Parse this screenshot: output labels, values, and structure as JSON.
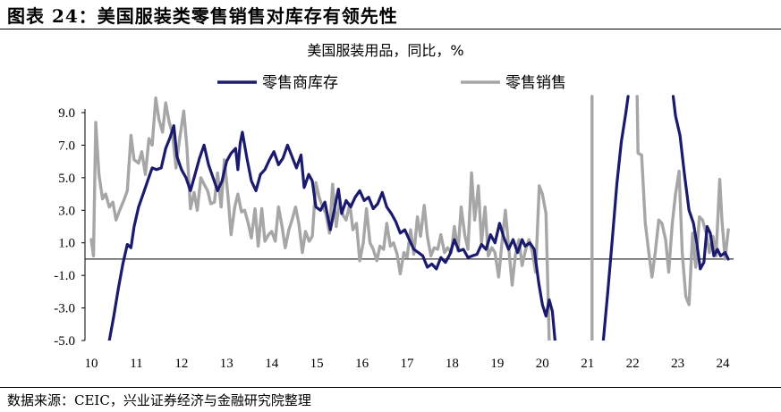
{
  "figure": {
    "title": "图表 24：美国服装类零售销售对库存有领先性",
    "source": "数据来源：CEIC，兴业证券经济与金融研究院整理"
  },
  "chart_data": {
    "type": "line",
    "title": "美国服装用品，同比，%",
    "xlabel": "",
    "ylabel": "",
    "ylim": [
      -5.0,
      9.0
    ],
    "xlim": [
      2010.0,
      2024.3
    ],
    "yticks": [
      -5.0,
      -3.0,
      -1.0,
      1.0,
      3.0,
      5.0,
      7.0,
      9.0
    ],
    "ytick_labels": [
      "-5.0",
      "-3.0",
      "-1.0",
      "1.0",
      "3.0",
      "5.0",
      "7.0",
      "9.0"
    ],
    "xticks": [
      2010,
      2011,
      2012,
      2013,
      2014,
      2015,
      2016,
      2017,
      2018,
      2019,
      2020,
      2021,
      2022,
      2023,
      2024
    ],
    "xtick_labels": [
      "10",
      "11",
      "12",
      "13",
      "14",
      "15",
      "16",
      "17",
      "18",
      "19",
      "20",
      "21",
      "22",
      "23",
      "24"
    ],
    "grid": false,
    "legend_position": "top",
    "series": [
      {
        "name": "零售商库存",
        "color": "#1a1a6e",
        "points": [
          [
            2010.4,
            -5.0
          ],
          [
            2010.5,
            -3.5
          ],
          [
            2010.6,
            -1.8
          ],
          [
            2010.7,
            -0.3
          ],
          [
            2010.8,
            0.9
          ],
          [
            2010.88,
            0.7
          ],
          [
            2010.95,
            2.0
          ],
          [
            2011.05,
            3.2
          ],
          [
            2011.15,
            4.0
          ],
          [
            2011.25,
            4.8
          ],
          [
            2011.35,
            5.6
          ],
          [
            2011.45,
            5.5
          ],
          [
            2011.55,
            5.6
          ],
          [
            2011.65,
            6.8
          ],
          [
            2011.75,
            7.5
          ],
          [
            2011.83,
            8.2
          ],
          [
            2011.9,
            6.3
          ],
          [
            2012.0,
            5.5
          ],
          [
            2012.1,
            5.0
          ],
          [
            2012.2,
            4.2
          ],
          [
            2012.3,
            5.2
          ],
          [
            2012.4,
            6.2
          ],
          [
            2012.5,
            7.0
          ],
          [
            2012.6,
            5.8
          ],
          [
            2012.7,
            5.0
          ],
          [
            2012.8,
            4.2
          ],
          [
            2012.9,
            4.8
          ],
          [
            2013.0,
            6.0
          ],
          [
            2013.1,
            6.5
          ],
          [
            2013.2,
            6.8
          ],
          [
            2013.25,
            5.5
          ],
          [
            2013.3,
            7.1
          ],
          [
            2013.35,
            7.8
          ],
          [
            2013.45,
            6.2
          ],
          [
            2013.55,
            4.8
          ],
          [
            2013.65,
            4.2
          ],
          [
            2013.75,
            5.2
          ],
          [
            2013.85,
            5.5
          ],
          [
            2013.95,
            6.1
          ],
          [
            2014.05,
            6.6
          ],
          [
            2014.15,
            5.8
          ],
          [
            2014.25,
            6.2
          ],
          [
            2014.35,
            7.0
          ],
          [
            2014.45,
            6.3
          ],
          [
            2014.55,
            5.6
          ],
          [
            2014.65,
            6.4
          ],
          [
            2014.72,
            4.4
          ],
          [
            2014.82,
            5.2
          ],
          [
            2014.9,
            4.8
          ],
          [
            2014.98,
            3.2
          ],
          [
            2015.08,
            3.0
          ],
          [
            2015.18,
            3.5
          ],
          [
            2015.25,
            2.5
          ],
          [
            2015.3,
            1.8
          ],
          [
            2015.4,
            3.2
          ],
          [
            2015.48,
            4.3
          ],
          [
            2015.55,
            2.8
          ],
          [
            2015.65,
            3.6
          ],
          [
            2015.75,
            3.2
          ],
          [
            2015.85,
            3.8
          ],
          [
            2015.95,
            4.2
          ],
          [
            2016.05,
            3.6
          ],
          [
            2016.15,
            3.8
          ],
          [
            2016.25,
            3.1
          ],
          [
            2016.35,
            3.4
          ],
          [
            2016.45,
            4.1
          ],
          [
            2016.55,
            3.2
          ],
          [
            2016.65,
            2.8
          ],
          [
            2016.75,
            2.3
          ],
          [
            2016.85,
            1.6
          ],
          [
            2016.95,
            1.8
          ],
          [
            2017.05,
            1.2
          ],
          [
            2017.15,
            0.6
          ],
          [
            2017.25,
            0.4
          ],
          [
            2017.35,
            0.2
          ],
          [
            2017.45,
            -0.5
          ],
          [
            2017.55,
            -0.3
          ],
          [
            2017.65,
            -0.6
          ],
          [
            2017.75,
            0.1
          ],
          [
            2017.85,
            -0.2
          ],
          [
            2017.95,
            0.3
          ],
          [
            2018.05,
            1.2
          ],
          [
            2018.15,
            0.5
          ],
          [
            2018.25,
            0.6
          ],
          [
            2018.35,
            0.1
          ],
          [
            2018.45,
            0.2
          ],
          [
            2018.55,
            0.3
          ],
          [
            2018.65,
            0.9
          ],
          [
            2018.75,
            0.6
          ],
          [
            2018.85,
            1.5
          ],
          [
            2018.95,
            1.0
          ],
          [
            2019.05,
            2.2
          ],
          [
            2019.15,
            1.3
          ],
          [
            2019.25,
            0.6
          ],
          [
            2019.35,
            1.2
          ],
          [
            2019.45,
            0.4
          ],
          [
            2019.55,
            1.2
          ],
          [
            2019.62,
            0.8
          ],
          [
            2019.72,
            1.0
          ],
          [
            2019.82,
            0.6
          ],
          [
            2019.92,
            -1.5
          ],
          [
            2020.0,
            -2.8
          ],
          [
            2020.08,
            -3.5
          ],
          [
            2020.15,
            -2.5
          ],
          [
            2020.22,
            -3.2
          ],
          [
            2020.28,
            -5.0
          ],
          null,
          [
            2021.35,
            -5.0
          ],
          [
            2021.45,
            -2.0
          ],
          [
            2021.55,
            1.2
          ],
          [
            2021.65,
            4.6
          ],
          [
            2021.75,
            7.2
          ],
          [
            2021.85,
            9.0
          ],
          [
            2021.9,
            10.0
          ],
          null,
          [
            2022.9,
            10.0
          ],
          [
            2022.95,
            8.8
          ],
          [
            2023.05,
            7.6
          ],
          [
            2023.15,
            5.2
          ],
          [
            2023.25,
            3.0
          ],
          [
            2023.35,
            2.2
          ],
          [
            2023.42,
            1.0
          ],
          [
            2023.5,
            -0.6
          ],
          [
            2023.58,
            -0.2
          ],
          [
            2023.65,
            2.0
          ],
          [
            2023.72,
            1.6
          ],
          [
            2023.8,
            0.2
          ],
          [
            2023.88,
            0.6
          ],
          [
            2023.95,
            0.2
          ],
          [
            2024.05,
            0.4
          ],
          [
            2024.12,
            0.0
          ]
        ]
      },
      {
        "name": "零售销售",
        "color": "#a6a6a6",
        "points": [
          [
            2010.0,
            1.2
          ],
          [
            2010.05,
            0.2
          ],
          [
            2010.1,
            8.4
          ],
          [
            2010.17,
            5.2
          ],
          [
            2010.25,
            3.7
          ],
          [
            2010.32,
            4.0
          ],
          [
            2010.4,
            3.2
          ],
          [
            2010.48,
            3.5
          ],
          [
            2010.55,
            2.4
          ],
          [
            2010.63,
            3.0
          ],
          [
            2010.72,
            3.6
          ],
          [
            2010.8,
            4.2
          ],
          [
            2010.88,
            7.6
          ],
          [
            2010.95,
            6.1
          ],
          [
            2011.05,
            5.9
          ],
          [
            2011.12,
            6.6
          ],
          [
            2011.2,
            5.2
          ],
          [
            2011.28,
            7.4
          ],
          [
            2011.35,
            7.0
          ],
          [
            2011.43,
            9.9
          ],
          [
            2011.5,
            8.6
          ],
          [
            2011.58,
            7.8
          ],
          [
            2011.65,
            9.6
          ],
          [
            2011.73,
            8.4
          ],
          [
            2011.8,
            7.7
          ],
          [
            2011.88,
            5.6
          ],
          [
            2011.95,
            7.2
          ],
          [
            2012.05,
            9.1
          ],
          [
            2012.12,
            6.9
          ],
          [
            2012.2,
            3.1
          ],
          [
            2012.28,
            4.1
          ],
          [
            2012.35,
            3.0
          ],
          [
            2012.43,
            5.0
          ],
          [
            2012.5,
            4.6
          ],
          [
            2012.58,
            4.2
          ],
          [
            2012.65,
            3.4
          ],
          [
            2012.73,
            3.5
          ],
          [
            2012.8,
            5.3
          ],
          [
            2012.88,
            3.2
          ],
          [
            2012.95,
            6.1
          ],
          [
            2013.03,
            3.9
          ],
          [
            2013.1,
            1.5
          ],
          [
            2013.18,
            3.2
          ],
          [
            2013.25,
            4.0
          ],
          [
            2013.33,
            2.9
          ],
          [
            2013.4,
            3.0
          ],
          [
            2013.48,
            2.2
          ],
          [
            2013.55,
            1.3
          ],
          [
            2013.63,
            3.1
          ],
          [
            2013.7,
            0.8
          ],
          [
            2013.78,
            3.1
          ],
          [
            2013.85,
            1.1
          ],
          [
            2013.93,
            1.5
          ],
          [
            2014.0,
            1.7
          ],
          [
            2014.08,
            1.1
          ],
          [
            2014.15,
            3.2
          ],
          [
            2014.23,
            2.0
          ],
          [
            2014.3,
            0.7
          ],
          [
            2014.38,
            1.8
          ],
          [
            2014.45,
            2.4
          ],
          [
            2014.53,
            3.2
          ],
          [
            2014.6,
            2.2
          ],
          [
            2014.68,
            0.4
          ],
          [
            2014.75,
            1.7
          ],
          [
            2014.83,
            1.1
          ],
          [
            2014.9,
            1.4
          ],
          [
            2014.98,
            4.7
          ],
          [
            2015.05,
            3.8
          ],
          [
            2015.13,
            3.2
          ],
          [
            2015.2,
            2.8
          ],
          [
            2015.28,
            1.6
          ],
          [
            2015.35,
            4.6
          ],
          [
            2015.43,
            2.0
          ],
          [
            2015.5,
            3.5
          ],
          [
            2015.58,
            2.7
          ],
          [
            2015.65,
            2.4
          ],
          [
            2015.73,
            3.4
          ],
          [
            2015.8,
            1.8
          ],
          [
            2015.88,
            2.2
          ],
          [
            2015.95,
            -0.1
          ],
          [
            2016.03,
            1.0
          ],
          [
            2016.1,
            3.1
          ],
          [
            2016.18,
            1.0
          ],
          [
            2016.25,
            0.6
          ],
          [
            2016.33,
            -0.1
          ],
          [
            2016.4,
            0.8
          ],
          [
            2016.48,
            0.6
          ],
          [
            2016.55,
            2.2
          ],
          [
            2016.63,
            0.8
          ],
          [
            2016.7,
            1.0
          ],
          [
            2016.78,
            0.3
          ],
          [
            2016.85,
            -0.9
          ],
          [
            2016.93,
            0.4
          ],
          [
            2017.0,
            0.1
          ],
          [
            2017.08,
            1.8
          ],
          [
            2017.15,
            0.3
          ],
          [
            2017.23,
            2.6
          ],
          [
            2017.3,
            1.4
          ],
          [
            2017.38,
            3.3
          ],
          [
            2017.45,
            1.4
          ],
          [
            2017.53,
            0.2
          ],
          [
            2017.6,
            0.7
          ],
          [
            2017.68,
            0.6
          ],
          [
            2017.75,
            1.5
          ],
          [
            2017.83,
            0.4
          ],
          [
            2017.9,
            0.7
          ],
          [
            2017.98,
            0.4
          ],
          [
            2018.05,
            2.0
          ],
          [
            2018.13,
            0.5
          ],
          [
            2018.2,
            3.2
          ],
          [
            2018.28,
            1.5
          ],
          [
            2018.35,
            0.6
          ],
          [
            2018.43,
            5.3
          ],
          [
            2018.5,
            2.4
          ],
          [
            2018.58,
            4.5
          ],
          [
            2018.65,
            1.0
          ],
          [
            2018.73,
            3.2
          ],
          [
            2018.8,
            0.2
          ],
          [
            2018.88,
            0.7
          ],
          [
            2018.95,
            0.4
          ],
          [
            2019.03,
            -1.1
          ],
          [
            2019.1,
            0.9
          ],
          [
            2019.18,
            3.0
          ],
          [
            2019.25,
            0.8
          ],
          [
            2019.33,
            -1.6
          ],
          [
            2019.4,
            0.2
          ],
          [
            2019.48,
            1.2
          ],
          [
            2019.55,
            -0.4
          ],
          [
            2019.63,
            0.6
          ],
          [
            2019.7,
            1.2
          ],
          [
            2019.78,
            0.4
          ],
          [
            2019.85,
            -0.8
          ],
          [
            2019.93,
            4.5
          ],
          [
            2020.0,
            4.0
          ],
          [
            2020.08,
            2.8
          ],
          [
            2020.15,
            -5.0
          ],
          null,
          [
            2021.1,
            -5.0
          ],
          [
            2021.1,
            10.0
          ],
          null,
          [
            2022.1,
            10.0
          ],
          [
            2022.12,
            6.5
          ],
          [
            2022.2,
            6.4
          ],
          [
            2022.28,
            2.2
          ],
          [
            2022.35,
            0.6
          ],
          [
            2022.43,
            -1.1
          ],
          [
            2022.5,
            0.4
          ],
          [
            2022.58,
            2.4
          ],
          [
            2022.65,
            2.2
          ],
          [
            2022.73,
            1.2
          ],
          [
            2022.8,
            -0.8
          ],
          [
            2022.88,
            2.2
          ],
          [
            2022.95,
            4.0
          ],
          [
            2023.03,
            5.4
          ],
          [
            2023.1,
            0.4
          ],
          [
            2023.18,
            -2.3
          ],
          [
            2023.25,
            -2.8
          ],
          [
            2023.33,
            1.6
          ],
          [
            2023.4,
            -0.5
          ],
          [
            2023.48,
            2.6
          ],
          [
            2023.55,
            2.4
          ],
          [
            2023.63,
            1.6
          ],
          [
            2023.7,
            0.4
          ],
          [
            2023.78,
            1.4
          ],
          [
            2023.85,
            0.2
          ],
          [
            2023.93,
            4.9
          ],
          [
            2023.98,
            2.4
          ],
          [
            2024.05,
            0.0
          ],
          [
            2024.12,
            1.8
          ]
        ]
      }
    ]
  }
}
